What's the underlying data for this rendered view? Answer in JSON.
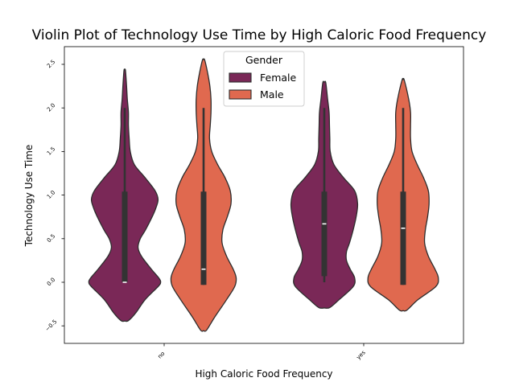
{
  "chart_data": {
    "type": "violin",
    "title": "Violin Plot of Technology Use Time by High Caloric Food Frequency",
    "xlabel": "High Caloric Food Frequency",
    "ylabel": "Technology Use Time",
    "categories": [
      "no",
      "yes"
    ],
    "ylim": [
      -0.7,
      2.7
    ],
    "yticks": [
      -0.5,
      0.0,
      0.5,
      1.0,
      1.5,
      2.0,
      2.5
    ],
    "ytick_labels": [
      "−0.5",
      "0.0",
      "0.5",
      "1.0",
      "1.5",
      "2.0",
      "2.5"
    ],
    "legend": {
      "title": "Gender",
      "placement": "top-center",
      "entries": [
        "Female",
        "Male"
      ]
    },
    "series": [
      {
        "name": "Female",
        "color": "#7a2857",
        "groups": [
          {
            "category": "no",
            "density": [
              [
                -0.44,
                0.1
              ],
              [
                -0.35,
                0.3
              ],
              [
                -0.2,
                0.55
              ],
              [
                -0.05,
                0.9
              ],
              [
                0.0,
                0.97
              ],
              [
                0.05,
                0.92
              ],
              [
                0.15,
                0.72
              ],
              [
                0.3,
                0.45
              ],
              [
                0.4,
                0.36
              ],
              [
                0.5,
                0.42
              ],
              [
                0.6,
                0.56
              ],
              [
                0.75,
                0.74
              ],
              [
                0.85,
                0.84
              ],
              [
                0.95,
                0.9
              ],
              [
                1.05,
                0.82
              ],
              [
                1.2,
                0.55
              ],
              [
                1.35,
                0.26
              ],
              [
                1.5,
                0.15
              ],
              [
                1.65,
                0.12
              ],
              [
                1.8,
                0.1
              ],
              [
                1.95,
                0.1
              ],
              [
                2.1,
                0.07
              ],
              [
                2.25,
                0.05
              ],
              [
                2.43,
                0.02
              ]
            ],
            "q1": 0.0,
            "median": 0.0,
            "q3": 1.04,
            "whisker_low": 0.0,
            "whisker_high": 2.0
          },
          {
            "category": "yes",
            "density": [
              [
                -0.29,
                0.15
              ],
              [
                -0.2,
                0.4
              ],
              [
                -0.05,
                0.78
              ],
              [
                0.05,
                0.82
              ],
              [
                0.15,
                0.7
              ],
              [
                0.25,
                0.6
              ],
              [
                0.35,
                0.6
              ],
              [
                0.45,
                0.68
              ],
              [
                0.6,
                0.78
              ],
              [
                0.75,
                0.86
              ],
              [
                0.9,
                0.9
              ],
              [
                1.05,
                0.82
              ],
              [
                1.2,
                0.52
              ],
              [
                1.35,
                0.26
              ],
              [
                1.5,
                0.16
              ],
              [
                1.65,
                0.15
              ],
              [
                1.8,
                0.14
              ],
              [
                1.95,
                0.13
              ],
              [
                2.1,
                0.09
              ],
              [
                2.29,
                0.04
              ]
            ],
            "q1": 0.07,
            "median": 0.67,
            "q3": 1.04,
            "whisker_low": 0.0,
            "whisker_high": 2.0
          }
        ]
      },
      {
        "name": "Male",
        "color": "#e0694f",
        "groups": [
          {
            "category": "no",
            "density": [
              [
                -0.55,
                0.08
              ],
              [
                -0.4,
                0.3
              ],
              [
                -0.2,
                0.62
              ],
              [
                -0.05,
                0.84
              ],
              [
                0.05,
                0.88
              ],
              [
                0.15,
                0.8
              ],
              [
                0.3,
                0.62
              ],
              [
                0.45,
                0.5
              ],
              [
                0.6,
                0.52
              ],
              [
                0.75,
                0.64
              ],
              [
                0.9,
                0.74
              ],
              [
                1.05,
                0.72
              ],
              [
                1.2,
                0.58
              ],
              [
                1.35,
                0.38
              ],
              [
                1.5,
                0.22
              ],
              [
                1.65,
                0.16
              ],
              [
                1.8,
                0.18
              ],
              [
                1.95,
                0.2
              ],
              [
                2.1,
                0.2
              ],
              [
                2.25,
                0.17
              ],
              [
                2.4,
                0.11
              ],
              [
                2.55,
                0.03
              ]
            ],
            "q1": -0.03,
            "median": 0.15,
            "q3": 1.04,
            "whisker_low": -0.03,
            "whisker_high": 2.0
          },
          {
            "category": "yes",
            "density": [
              [
                -0.32,
                0.1
              ],
              [
                -0.2,
                0.4
              ],
              [
                -0.05,
                0.88
              ],
              [
                0.05,
                0.95
              ],
              [
                0.15,
                0.86
              ],
              [
                0.3,
                0.68
              ],
              [
                0.45,
                0.58
              ],
              [
                0.6,
                0.6
              ],
              [
                0.75,
                0.66
              ],
              [
                0.9,
                0.7
              ],
              [
                1.05,
                0.68
              ],
              [
                1.2,
                0.55
              ],
              [
                1.35,
                0.38
              ],
              [
                1.5,
                0.24
              ],
              [
                1.65,
                0.2
              ],
              [
                1.8,
                0.2
              ],
              [
                1.95,
                0.2
              ],
              [
                2.1,
                0.15
              ],
              [
                2.32,
                0.03
              ]
            ],
            "q1": -0.03,
            "median": 0.62,
            "q3": 1.04,
            "whisker_low": -0.03,
            "whisker_high": 2.0
          }
        ]
      }
    ]
  }
}
